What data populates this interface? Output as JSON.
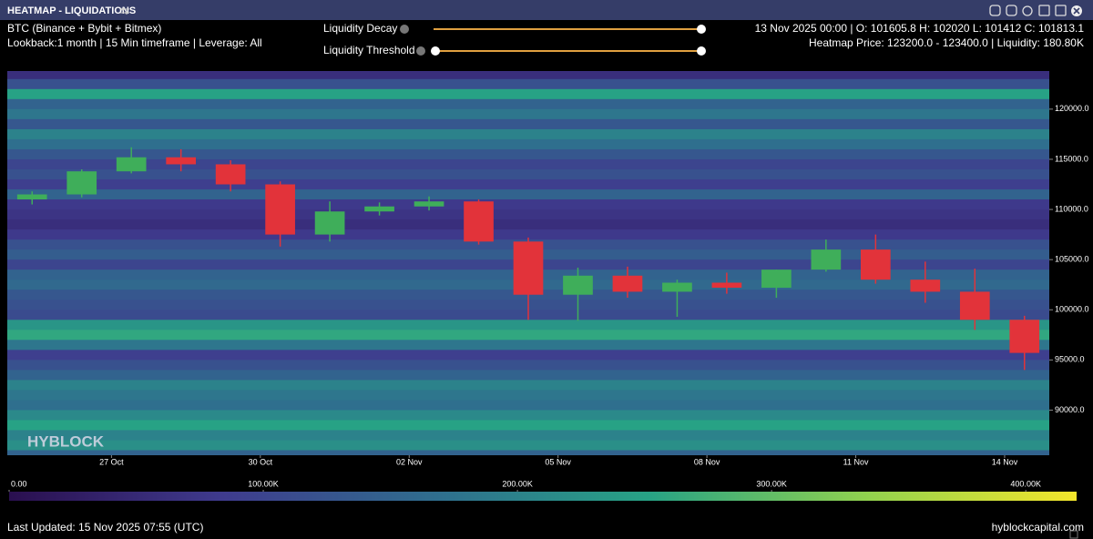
{
  "header": {
    "title": "HEATMAP - LIQUIDATIONS"
  },
  "info": {
    "asset": "BTC (Binance + Bybit + Bitmex)",
    "settings": "Lookback:1 month | 15 Min timeframe | Leverage: All",
    "ohlc": "13 Nov 2025 00:00 | O: 101605.8 H: 102020 L: 101412 C: 101813.1",
    "hover": "Heatmap Price: 123200.0 - 123400.0 | Liquidity: 180.80K"
  },
  "controls": {
    "decay": "Liquidity Decay",
    "threshold": "Liquidity Threshold"
  },
  "chart_data": {
    "type": "candlestick",
    "watermark": "HYBLOCK",
    "x": [
      "2025-10-25",
      "2025-10-26",
      "2025-10-27",
      "2025-10-28",
      "2025-10-29",
      "2025-10-30",
      "2025-10-31",
      "2025-11-01",
      "2025-11-02",
      "2025-11-03",
      "2025-11-04",
      "2025-11-05",
      "2025-11-06",
      "2025-11-07",
      "2025-11-08",
      "2025-11-09",
      "2025-11-10",
      "2025-11-11",
      "2025-11-12",
      "2025-11-13",
      "2025-11-14"
    ],
    "open": [
      111000,
      111500,
      113800,
      115200,
      114500,
      112500,
      107500,
      109800,
      110300,
      110800,
      106800,
      101500,
      103400,
      101800,
      102700,
      102200,
      104000,
      106000,
      103000,
      101800,
      99000
    ],
    "high": [
      111800,
      114000,
      116200,
      116000,
      114900,
      112800,
      110800,
      110700,
      111300,
      111000,
      107200,
      104200,
      104300,
      103000,
      103700,
      104000,
      107000,
      107500,
      104800,
      104100,
      99400
    ],
    "low": [
      110500,
      111200,
      113600,
      113800,
      111800,
      106300,
      106800,
      109400,
      109900,
      106500,
      99000,
      98900,
      101200,
      99300,
      101600,
      101200,
      103800,
      102600,
      100700,
      98000,
      94000
    ],
    "close": [
      111500,
      113800,
      115200,
      114500,
      112500,
      107500,
      109800,
      110300,
      110800,
      106800,
      101500,
      103400,
      101800,
      102700,
      102200,
      104000,
      106000,
      103000,
      101800,
      99000,
      95700
    ],
    "up_color": "#3fae5a",
    "down_color": "#e2333a",
    "heatmap": {
      "prices": [
        123500,
        122500,
        121500,
        120500,
        119500,
        118500,
        117500,
        116500,
        115500,
        114500,
        113500,
        112500,
        111500,
        110500,
        109500,
        108500,
        107500,
        106500,
        105500,
        104500,
        103500,
        102500,
        101500,
        100500,
        99500,
        98500,
        97500,
        96500,
        95500,
        94500,
        93500,
        92500,
        91500,
        90500,
        89500,
        88500,
        87500,
        86500,
        85500
      ],
      "values": [
        60000,
        120000,
        250000,
        150000,
        180000,
        130000,
        200000,
        170000,
        130000,
        100000,
        120000,
        90000,
        150000,
        80000,
        70000,
        60000,
        80000,
        120000,
        140000,
        100000,
        150000,
        160000,
        130000,
        120000,
        110000,
        230000,
        260000,
        180000,
        90000,
        120000,
        150000,
        200000,
        180000,
        170000,
        210000,
        250000,
        200000,
        220000,
        150000
      ]
    },
    "colorscale": [
      "#2a0f4f",
      "#3f3b8e",
      "#2f6e8e",
      "#27a385",
      "#8fd14f",
      "#f4e62b"
    ],
    "zlim": [
      0,
      420000
    ],
    "zticks": [
      {
        "value": 0,
        "label": "0.00"
      },
      {
        "value": 100000,
        "label": "100.00K"
      },
      {
        "value": 200000,
        "label": "200.00K"
      },
      {
        "value": 300000,
        "label": "300.00K"
      },
      {
        "value": 400000,
        "label": "400.00K"
      }
    ],
    "ylim": [
      85500,
      123800
    ],
    "yticks": [
      {
        "value": 90000,
        "label": "90000.0"
      },
      {
        "value": 95000,
        "label": "95000.0"
      },
      {
        "value": 100000,
        "label": "100000.0"
      },
      {
        "value": 105000,
        "label": "105000.0"
      },
      {
        "value": 110000,
        "label": "110000.0"
      },
      {
        "value": 115000,
        "label": "115000.0"
      },
      {
        "value": 120000,
        "label": "120000.0"
      }
    ],
    "xlim": [
      "2025-10-25",
      "2025-11-15"
    ],
    "xticks": [
      {
        "value": "2025-10-27",
        "label": "27 Oct"
      },
      {
        "value": "2025-10-30",
        "label": "30 Oct"
      },
      {
        "value": "2025-11-02",
        "label": "02 Nov"
      },
      {
        "value": "2025-11-05",
        "label": "05 Nov"
      },
      {
        "value": "2025-11-08",
        "label": "08 Nov"
      },
      {
        "value": "2025-11-11",
        "label": "11 Nov"
      },
      {
        "value": "2025-11-14",
        "label": "14 Nov"
      }
    ]
  },
  "footer": {
    "updated": "Last Updated: 15 Nov 2025 07:55 (UTC)",
    "site": "hyblockcapital.com"
  }
}
